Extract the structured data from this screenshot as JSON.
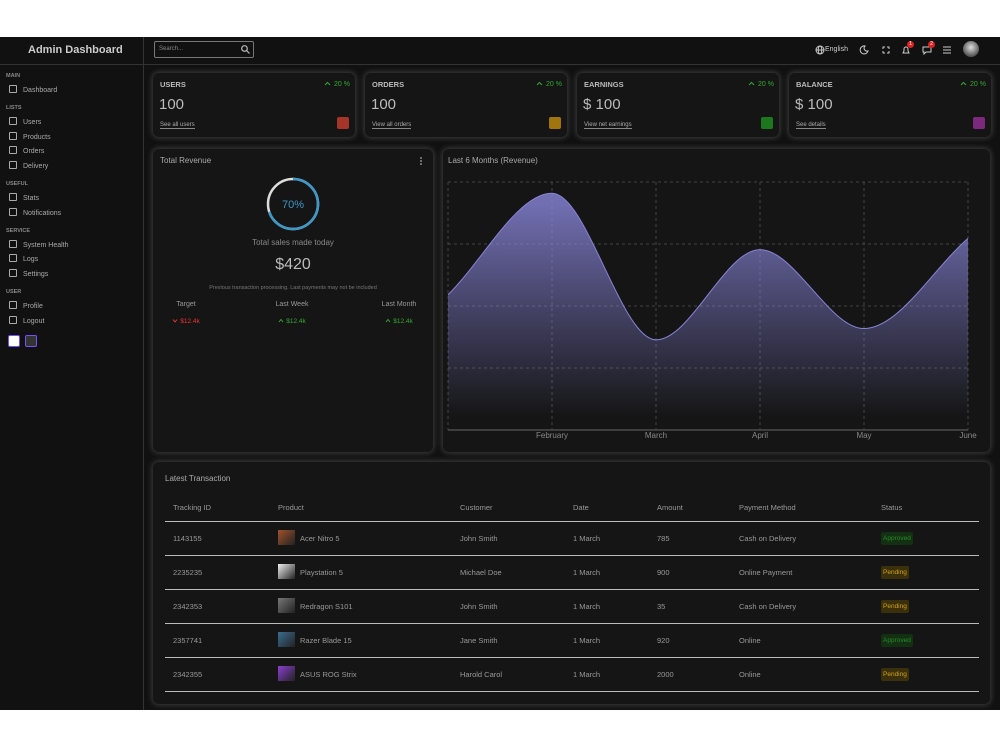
{
  "sidebar": {
    "logo": "Admin Dashboard",
    "sections": [
      {
        "title": "MAIN",
        "items": [
          "Dashboard"
        ]
      },
      {
        "title": "LISTS",
        "items": [
          "Users",
          "Products",
          "Orders",
          "Delivery"
        ]
      },
      {
        "title": "USEFUL",
        "items": [
          "Stats",
          "Notifications"
        ]
      },
      {
        "title": "SERVICE",
        "items": [
          "System Health",
          "Logs",
          "Settings"
        ]
      },
      {
        "title": "USER",
        "items": [
          "Profile",
          "Logout"
        ]
      }
    ]
  },
  "navbar": {
    "search_placeholder": "Search...",
    "language": "English",
    "notifications": "1",
    "messages": "2"
  },
  "widgets": [
    {
      "title": "USERS",
      "percentage": "20 %",
      "amount": "100",
      "link": "See all users",
      "color": "#c0392b"
    },
    {
      "title": "ORDERS",
      "percentage": "20 %",
      "amount": "100",
      "link": "View all orders",
      "color": "#b8860b"
    },
    {
      "title": "EARNINGS",
      "percentage": "20 %",
      "amount": "$ 100",
      "link": "View net earnings",
      "color": "#1e8a1e"
    },
    {
      "title": "BALANCE",
      "percentage": "20 %",
      "amount": "$ 100",
      "link": "See details",
      "color": "#8e2c8e"
    }
  ],
  "featured": {
    "title": "Total Revenue",
    "progress": 70,
    "progress_label": "70%",
    "subtitle": "Total sales made today",
    "amount": "$420",
    "note": "Previous transaction processing. Last payments may not be included",
    "items": [
      {
        "title": "Target",
        "result": "$12.4k",
        "trend": "down"
      },
      {
        "title": "Last Week",
        "result": "$12.4k",
        "trend": "up"
      },
      {
        "title": "Last Month",
        "result": "$12.4k",
        "trend": "up"
      }
    ]
  },
  "chart": {
    "type": "area",
    "title": "Last 6 Months (Revenue)",
    "categories": [
      null,
      "February",
      "March",
      "April",
      "May",
      "June"
    ],
    "values": [
      1200,
      2100,
      800,
      1600,
      900,
      1700
    ],
    "ylim": [
      0,
      2200
    ],
    "color": "#8884d8",
    "grid": true
  },
  "table": {
    "title": "Latest Transaction",
    "columns": [
      "Tracking ID",
      "Product",
      "Customer",
      "Date",
      "Amount",
      "Payment Method",
      "Status"
    ],
    "rows": [
      [
        1143155,
        "Acer Nitro 5",
        "John Smith",
        "1 March",
        785,
        "Cash on Delivery",
        "Approved"
      ],
      [
        2235235,
        "Playstation 5",
        "Michael Doe",
        "1 March",
        900,
        "Online Payment",
        "Pending"
      ],
      [
        2342353,
        "Redragon S101",
        "John Smith",
        "1 March",
        35,
        "Cash on Delivery",
        "Pending"
      ],
      [
        2357741,
        "Razer Blade 15",
        "Jane Smith",
        "1 March",
        920,
        "Online",
        "Approved"
      ],
      [
        2342355,
        "ASUS ROG Strix",
        "Harold Carol",
        "1 March",
        2000,
        "Online",
        "Pending"
      ]
    ]
  }
}
